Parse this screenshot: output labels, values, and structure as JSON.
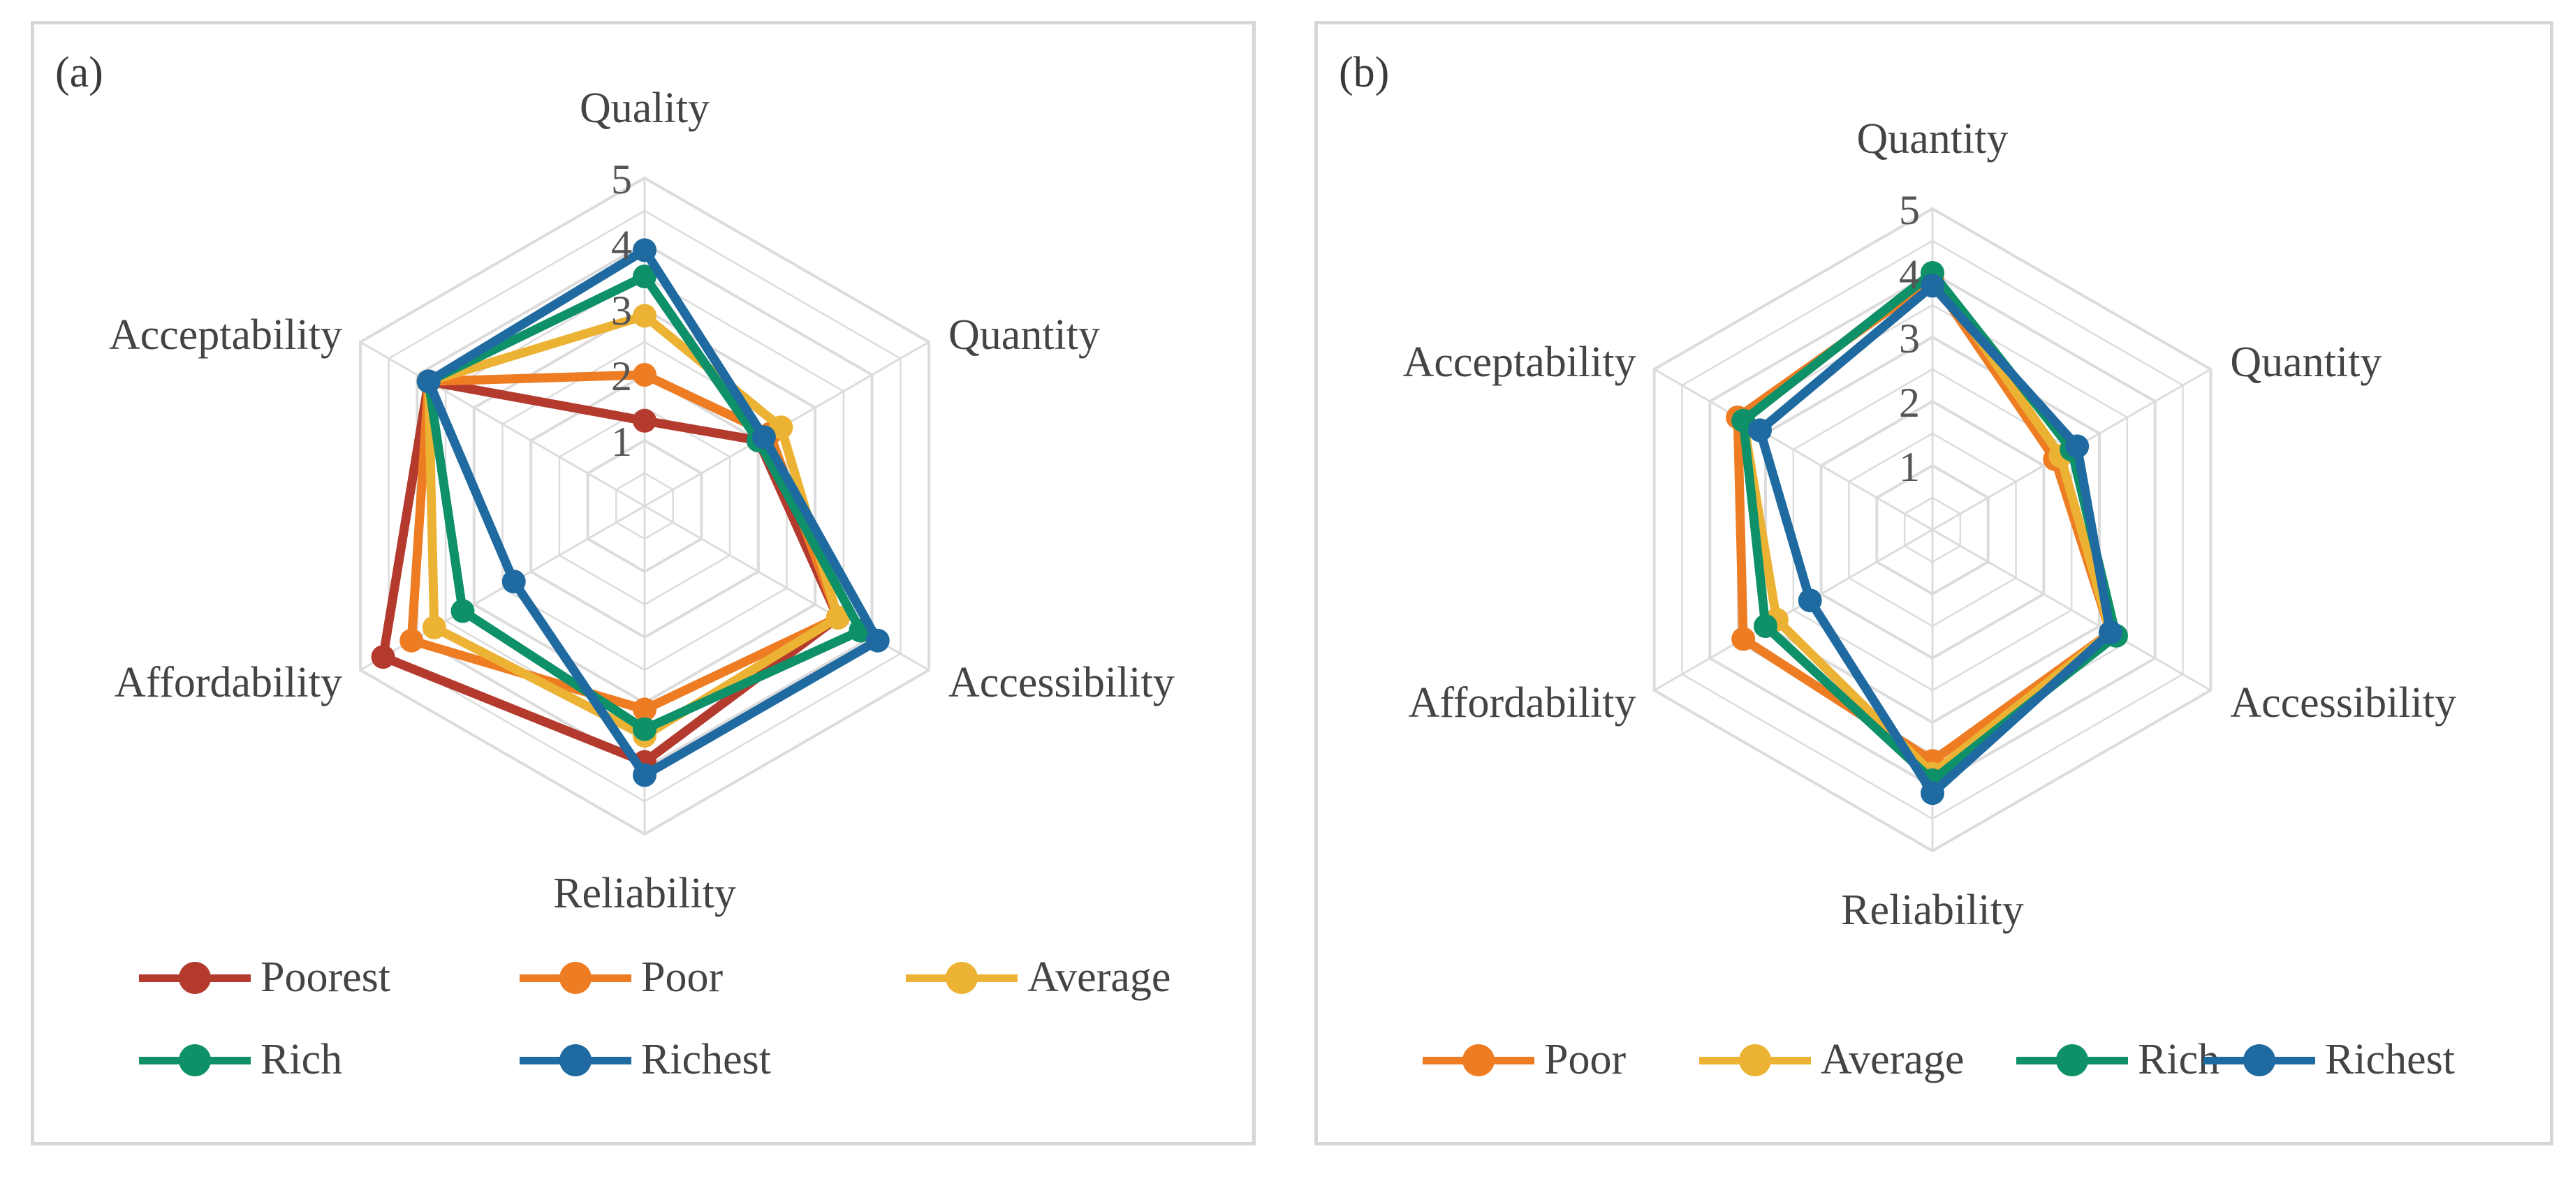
{
  "colors": {
    "Poorest": "#b43a2e",
    "Poor": "#ee7c22",
    "Average": "#ecb233",
    "Rich": "#0e9068",
    "Richest": "#1f6aa0",
    "grid": "#dcdcdc"
  },
  "chart_data": [
    {
      "panel": "(a)",
      "type": "radar",
      "axes": [
        "Quality",
        "Quantity",
        "Accessibility",
        "Reliability",
        "Affordability",
        "Acceptability"
      ],
      "ticks": [
        "1",
        "2",
        "3",
        "4",
        "5"
      ],
      "rmax": 5,
      "legend_position": "bottom",
      "series": [
        {
          "name": "Poorest",
          "values": [
            1.3,
            2.0,
            3.4,
            3.9,
            4.6,
            3.8
          ]
        },
        {
          "name": "Poor",
          "values": [
            2.0,
            2.2,
            3.4,
            3.1,
            4.1,
            3.8
          ]
        },
        {
          "name": "Average",
          "values": [
            2.9,
            2.4,
            3.4,
            3.5,
            3.7,
            3.8
          ]
        },
        {
          "name": "Rich",
          "values": [
            3.5,
            2.0,
            3.8,
            3.4,
            3.2,
            3.8
          ]
        },
        {
          "name": "Richest",
          "values": [
            3.9,
            2.1,
            4.1,
            4.1,
            2.3,
            3.8
          ]
        }
      ]
    },
    {
      "panel": "(b)",
      "type": "radar",
      "axes": [
        "Quantity",
        "Quantity",
        "Accessibility",
        "Reliability",
        "Affordability",
        "Acceptability"
      ],
      "ticks": [
        "1",
        "2",
        "3",
        "4",
        "5"
      ],
      "rmax": 5,
      "legend_position": "bottom",
      "series": [
        {
          "name": "Poor",
          "values": [
            3.9,
            2.2,
            3.2,
            3.6,
            3.4,
            3.5
          ]
        },
        {
          "name": "Average",
          "values": [
            4.0,
            2.3,
            3.2,
            3.8,
            2.8,
            3.4
          ]
        },
        {
          "name": "Rich",
          "values": [
            4.0,
            2.5,
            3.3,
            3.9,
            3.0,
            3.4
          ]
        },
        {
          "name": "Richest",
          "values": [
            3.8,
            2.6,
            3.2,
            4.1,
            2.2,
            3.1
          ]
        }
      ]
    }
  ]
}
